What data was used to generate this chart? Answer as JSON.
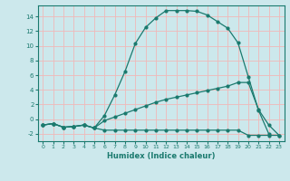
{
  "xlabel": "Humidex (Indice chaleur)",
  "bg_color": "#cce8ec",
  "grid_color": "#f0b8b8",
  "line_color": "#1a7a6e",
  "xlim": [
    -0.5,
    23.5
  ],
  "ylim": [
    -3.0,
    15.5
  ],
  "xticks": [
    0,
    1,
    2,
    3,
    4,
    5,
    6,
    7,
    8,
    9,
    10,
    11,
    12,
    13,
    14,
    15,
    16,
    17,
    18,
    19,
    20,
    21,
    22,
    23
  ],
  "yticks": [
    -2,
    0,
    2,
    4,
    6,
    8,
    10,
    12,
    14
  ],
  "curve1_x": [
    0,
    1,
    2,
    3,
    4,
    5,
    6,
    7,
    8,
    9,
    10,
    11,
    12,
    13,
    14,
    15,
    16,
    17,
    18,
    19,
    20,
    21,
    22
  ],
  "curve1_y": [
    -0.8,
    -0.6,
    -1.1,
    -1.0,
    -0.8,
    -1.2,
    0.5,
    3.3,
    6.5,
    10.3,
    12.5,
    13.8,
    14.8,
    14.8,
    14.8,
    14.7,
    14.2,
    13.3,
    12.4,
    10.4,
    5.8,
    1.2,
    -2.0
  ],
  "curve2_x": [
    0,
    1,
    2,
    3,
    4,
    5,
    6,
    7,
    8,
    9,
    10,
    11,
    12,
    13,
    14,
    15,
    16,
    17,
    18,
    19,
    20,
    21,
    22,
    23
  ],
  "curve2_y": [
    -0.8,
    -0.6,
    -1.1,
    -1.0,
    -0.8,
    -1.2,
    -1.5,
    -1.5,
    -1.5,
    -1.5,
    -1.5,
    -1.5,
    -1.5,
    -1.5,
    -1.5,
    -1.5,
    -1.5,
    -1.5,
    -1.5,
    -1.5,
    -2.2,
    -2.2,
    -2.2,
    -2.2
  ],
  "curve3_x": [
    0,
    1,
    2,
    3,
    4,
    5,
    6,
    7,
    8,
    9,
    10,
    11,
    12,
    13,
    14,
    15,
    16,
    17,
    18,
    19,
    20,
    21,
    22,
    23
  ],
  "curve3_y": [
    -0.8,
    -0.6,
    -1.1,
    -1.0,
    -0.8,
    -1.2,
    -0.2,
    0.3,
    0.8,
    1.3,
    1.8,
    2.3,
    2.7,
    3.0,
    3.3,
    3.6,
    3.9,
    4.2,
    4.5,
    5.0,
    5.0,
    1.3,
    -0.8,
    -2.2
  ]
}
